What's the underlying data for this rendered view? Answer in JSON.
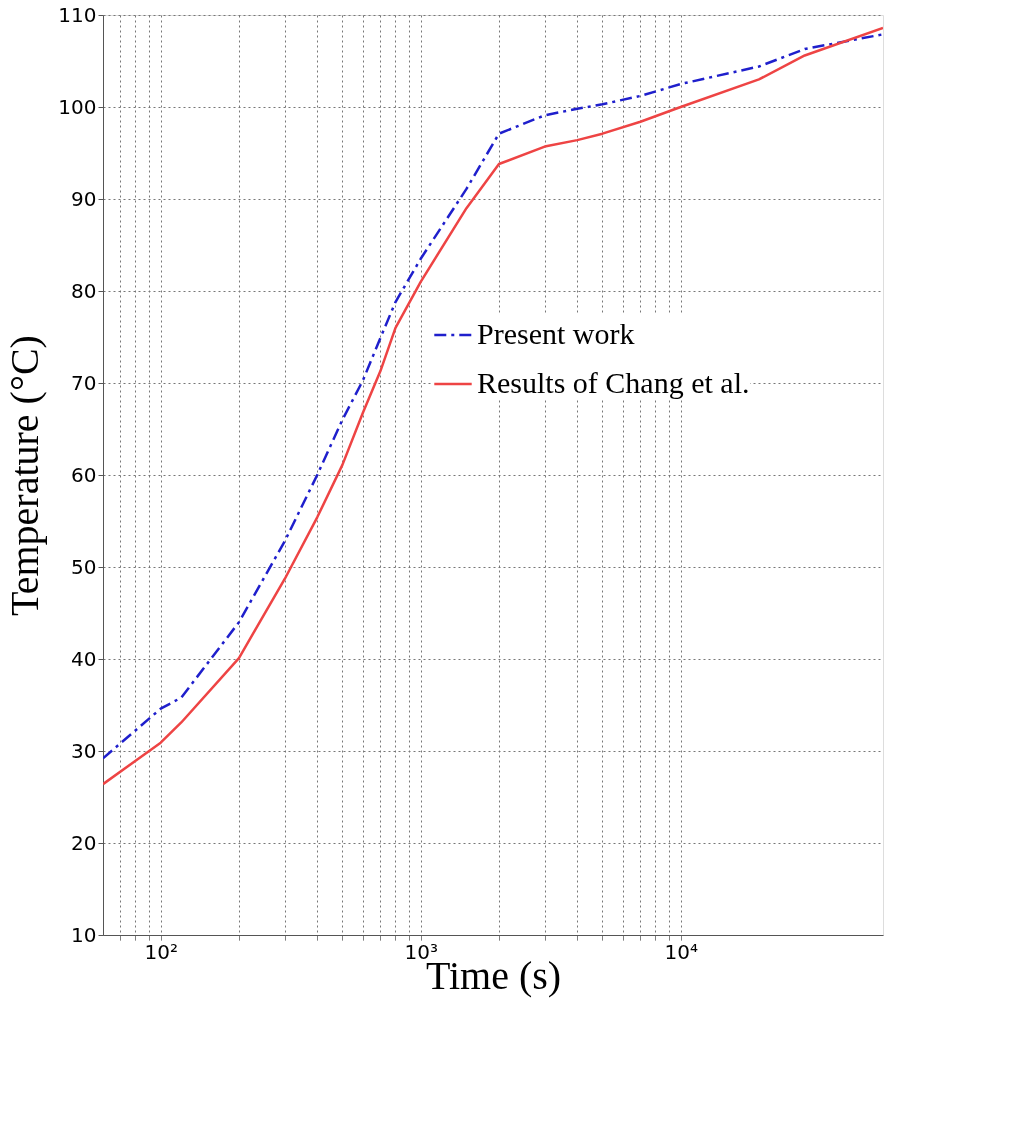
{
  "chart_data": {
    "type": "line",
    "xlabel": "Time (s)",
    "ylabel": "Temperature (°C)",
    "log": "x",
    "xlim": [
      60,
      60000
    ],
    "ylim": [
      10,
      110
    ],
    "xticks": [
      {
        "value": 70,
        "label": null
      },
      {
        "value": 80,
        "label": null
      },
      {
        "value": 90,
        "label": null
      },
      {
        "value": 100,
        "label": "10²"
      },
      {
        "value": 200,
        "label": null
      },
      {
        "value": 300,
        "label": null
      },
      {
        "value": 400,
        "label": null
      },
      {
        "value": 500,
        "label": null
      },
      {
        "value": 600,
        "label": null
      },
      {
        "value": 700,
        "label": null
      },
      {
        "value": 800,
        "label": null
      },
      {
        "value": 900,
        "label": null
      },
      {
        "value": 1000,
        "label": "10³"
      },
      {
        "value": 2000,
        "label": null
      },
      {
        "value": 3000,
        "label": null
      },
      {
        "value": 4000,
        "label": null
      },
      {
        "value": 5000,
        "label": null
      },
      {
        "value": 6000,
        "label": null
      },
      {
        "value": 7000,
        "label": null
      },
      {
        "value": 8000,
        "label": null
      },
      {
        "value": 9000,
        "label": null
      },
      {
        "value": 10000,
        "label": "10⁴"
      }
    ],
    "yticks": [
      10,
      20,
      30,
      40,
      50,
      60,
      70,
      80,
      90,
      100,
      110
    ],
    "grid": true,
    "legend": "right",
    "series": [
      {
        "name": "Present work",
        "color": "#1f1fcc",
        "line_style": "dashdot",
        "x": [
          60,
          100,
          120,
          200,
          300,
          400,
          500,
          600,
          700,
          800,
          1000,
          1500,
          2000,
          3000,
          4000,
          5000,
          7000,
          10000,
          20000,
          30000,
          60000
        ],
        "values": [
          29.2,
          34.6,
          35.8,
          44.0,
          52.8,
          60.0,
          66.0,
          70.3,
          74.9,
          78.8,
          83.5,
          91.1,
          97.1,
          99.1,
          99.8,
          100.3,
          101.2,
          102.5,
          104.4,
          106.3,
          107.9
        ]
      },
      {
        "name": "Results of Chang et al.",
        "color": "#ee4444",
        "line_style": "solid",
        "x": [
          60,
          100,
          120,
          200,
          300,
          400,
          500,
          600,
          700,
          800,
          1000,
          1500,
          2000,
          3000,
          4000,
          5000,
          7000,
          10000,
          20000,
          30000,
          60000
        ],
        "values": [
          26.4,
          30.9,
          33.1,
          40.1,
          48.7,
          55.4,
          61.1,
          66.8,
          71.3,
          76.0,
          81.0,
          89.0,
          93.8,
          95.7,
          96.4,
          97.1,
          98.4,
          100.0,
          103.0,
          105.6,
          108.6
        ]
      }
    ]
  }
}
